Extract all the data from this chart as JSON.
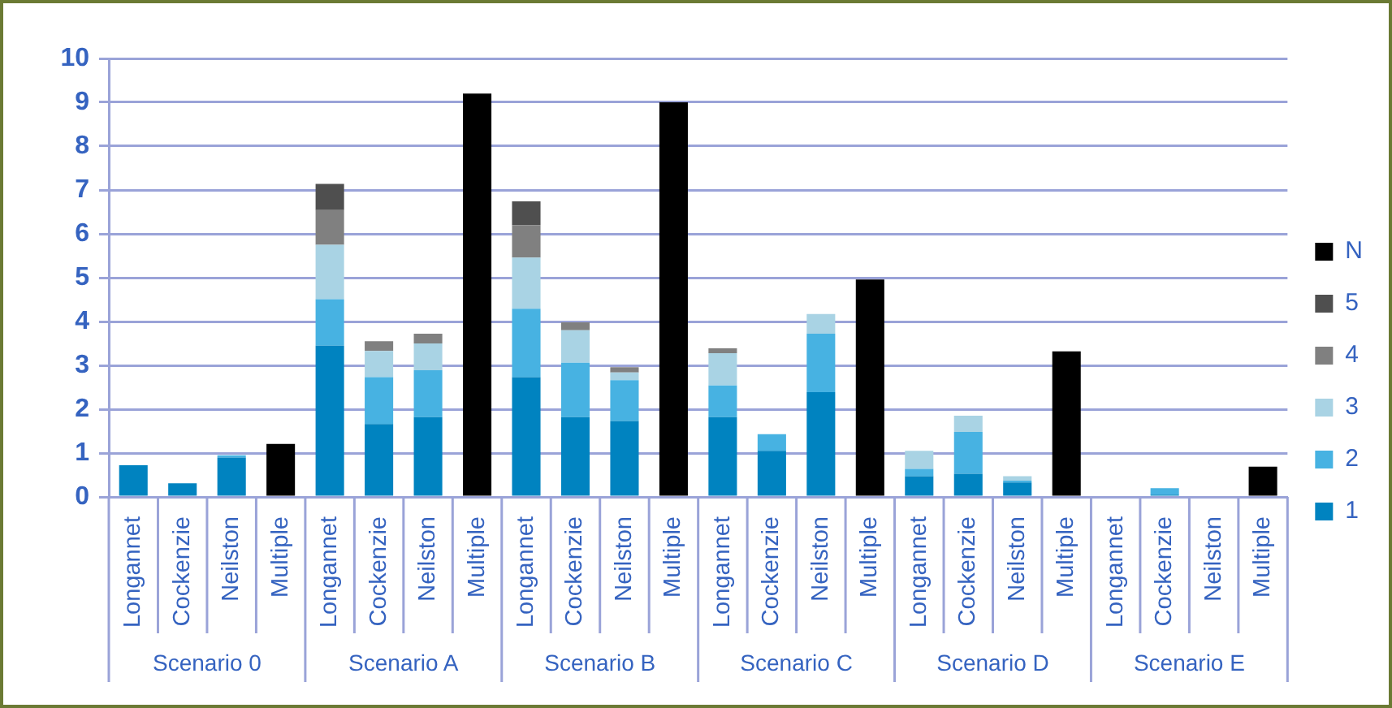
{
  "chart_data": {
    "type": "bar",
    "stacked": true,
    "categories": [
      "Longannet",
      "Cockenzie",
      "Neilston",
      "Multiple",
      "Longannet",
      "Cockenzie",
      "Neilston",
      "Multiple",
      "Longannet",
      "Cockenzie",
      "Neilston",
      "Multiple",
      "Longannet",
      "Cockenzie",
      "Neilston",
      "Multiple",
      "Longannet",
      "Cockenzie",
      "Neilston",
      "Multiple",
      "Longannet",
      "Cockenzie",
      "Neilston",
      "Multiple"
    ],
    "series": [
      {
        "name": "1",
        "color": "#0083c0",
        "values": [
          0.72,
          0.31,
          0.9,
          null,
          3.45,
          1.66,
          1.82,
          null,
          2.73,
          1.82,
          1.73,
          null,
          1.82,
          1.05,
          2.39,
          null,
          0.47,
          0.53,
          0.33,
          null,
          null,
          0.05,
          null,
          null
        ]
      },
      {
        "name": "2",
        "color": "#47b2e2",
        "values": [
          null,
          null,
          0.05,
          null,
          1.06,
          1.07,
          1.07,
          null,
          1.56,
          1.24,
          0.93,
          null,
          0.72,
          0.38,
          1.33,
          null,
          0.17,
          0.95,
          0.04,
          null,
          null,
          0.15,
          null,
          null
        ]
      },
      {
        "name": "3",
        "color": "#a9d3e4",
        "values": [
          null,
          null,
          null,
          null,
          1.24,
          0.6,
          0.61,
          null,
          1.17,
          0.74,
          0.18,
          null,
          0.74,
          null,
          0.45,
          null,
          0.41,
          0.37,
          0.1,
          null,
          null,
          null,
          null,
          null
        ]
      },
      {
        "name": "4",
        "color": "#808080",
        "values": [
          null,
          null,
          null,
          null,
          0.79,
          0.22,
          0.22,
          null,
          0.74,
          0.18,
          0.12,
          null,
          0.11,
          null,
          null,
          null,
          null,
          null,
          null,
          null,
          null,
          null,
          null,
          null
        ]
      },
      {
        "name": "5",
        "color": "#4f4f4f",
        "values": [
          null,
          null,
          null,
          null,
          0.6,
          null,
          null,
          null,
          0.54,
          null,
          null,
          null,
          null,
          null,
          null,
          null,
          null,
          null,
          null,
          null,
          null,
          null,
          null,
          null
        ]
      },
      {
        "name": "N",
        "color": "#000000",
        "values": [
          null,
          null,
          null,
          1.21,
          null,
          null,
          null,
          9.2,
          null,
          null,
          null,
          9.0,
          null,
          null,
          null,
          4.96,
          null,
          null,
          null,
          3.32,
          null,
          null,
          null,
          0.69
        ]
      }
    ],
    "ylim": [
      0,
      10
    ],
    "yticks": [
      0,
      1,
      2,
      3,
      4,
      5,
      6,
      7,
      8,
      9,
      10
    ],
    "grid": "y",
    "legend": "right",
    "annotations": [
      "Scenario 0",
      "Scenario A",
      "Scenario B",
      "Scenario C",
      "Scenario D",
      "Scenario E"
    ]
  }
}
